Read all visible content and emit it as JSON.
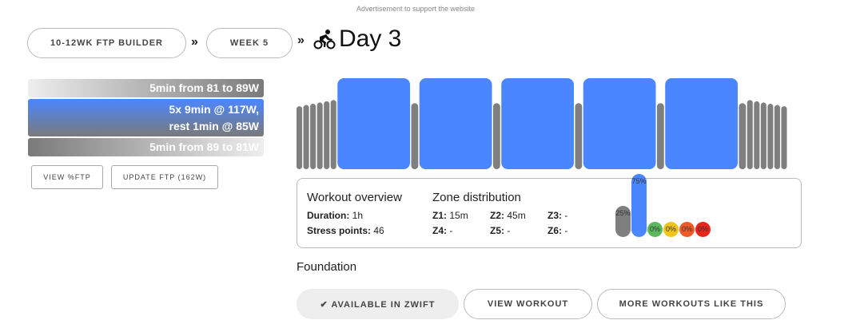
{
  "ad_text": "Advertisement to support the website",
  "breadcrumb": {
    "plan": "10-12WK FTP BUILDER",
    "week": "WEEK 5",
    "sep": "»",
    "day": "Day 3",
    "icon": "cyclist-icon"
  },
  "segments": [
    {
      "text": "5min from 81 to 89W",
      "style": "warmup"
    },
    {
      "text": "5x 9min @ 117W,",
      "text2": "rest 1min @ 85W",
      "style": "interval"
    },
    {
      "text": "5min from 89 to 81W",
      "style": "cooldown"
    }
  ],
  "buttons": {
    "view_ftp": "VIEW %FTP",
    "update_ftp": "UPDATE FTP (162W)"
  },
  "workout_chart": {
    "colors": {
      "z1": "#7f7f7f",
      "z2": "#4a86ff"
    },
    "segments": [
      {
        "minutes": 5,
        "from_w": 81,
        "to_w": 89,
        "zone": "z1",
        "steps": 6
      },
      {
        "repeat": 5,
        "on": {
          "minutes": 9,
          "w": 117,
          "zone": "z2"
        },
        "off": {
          "minutes": 1,
          "w": 85,
          "zone": "z1"
        }
      },
      {
        "minutes": 5,
        "from_w": 89,
        "to_w": 81,
        "zone": "z1",
        "steps": 6
      }
    ]
  },
  "overview": {
    "title": "Workout overview",
    "duration_label": "Duration:",
    "duration": "1h",
    "stress_label": "Stress points:",
    "stress": "46"
  },
  "zones": {
    "title": "Zone distribution",
    "items": [
      {
        "label": "Z1:",
        "value": "15m"
      },
      {
        "label": "Z2:",
        "value": "45m"
      },
      {
        "label": "Z3:",
        "value": "-"
      },
      {
        "label": "Z4:",
        "value": "-"
      },
      {
        "label": "Z5:",
        "value": "-"
      },
      {
        "label": "Z6:",
        "value": "-"
      }
    ],
    "bars": [
      {
        "pct": 25,
        "label": "25%",
        "color": "#7f7f7f"
      },
      {
        "pct": 75,
        "label": "75%",
        "color": "#4a86ff"
      },
      {
        "pct": 0,
        "label": "0%",
        "color": "#5cb85c"
      },
      {
        "pct": 0,
        "label": "0%",
        "color": "#f0c419"
      },
      {
        "pct": 0,
        "label": "0%",
        "color": "#f05a28"
      },
      {
        "pct": 0,
        "label": "0%",
        "color": "#e8251b"
      }
    ]
  },
  "category": "Foundation",
  "actions": {
    "zwift": "✔ AVAILABLE IN ZWIFT",
    "view": "VIEW WORKOUT",
    "more": "MORE WORKOUTS LIKE THIS"
  }
}
